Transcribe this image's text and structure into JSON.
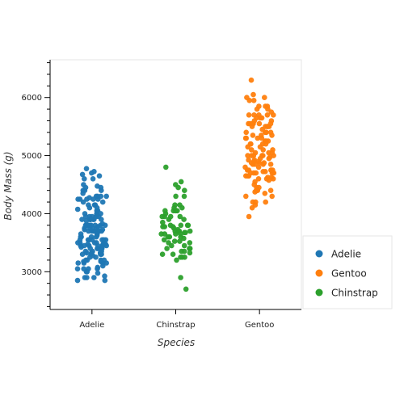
{
  "chart_data": {
    "type": "scatter",
    "title": "",
    "xlabel": "Species",
    "ylabel": "Body Mass (g)",
    "categories": [
      "Adelie",
      "Chinstrap",
      "Gentoo"
    ],
    "ylim": [
      2350,
      6650
    ],
    "yticks": [
      3000,
      4000,
      5000,
      6000
    ],
    "grid": false,
    "legend_position": "right",
    "series": [
      {
        "name": "Adelie",
        "category": "Adelie",
        "color": "#1f77b4",
        "values": [
          3750,
          3800,
          3250,
          3450,
          3650,
          3625,
          4675,
          3475,
          4250,
          3300,
          3700,
          3200,
          3800,
          4400,
          3700,
          3450,
          4500,
          3325,
          4200,
          3400,
          3600,
          3800,
          3950,
          3800,
          3800,
          3550,
          3200,
          3150,
          3950,
          3250,
          3900,
          3300,
          3900,
          3325,
          4150,
          3950,
          3550,
          3300,
          4650,
          3150,
          3900,
          3100,
          4400,
          3000,
          4600,
          3425,
          2975,
          3450,
          4150,
          3500,
          4300,
          3450,
          4050,
          2900,
          3700,
          3550,
          3800,
          2850,
          3750,
          3150,
          4400,
          3600,
          4050,
          2850,
          3950,
          3350,
          4100,
          3050,
          4450,
          3600,
          3900,
          3550,
          4150,
          3700,
          4250,
          3700,
          3900,
          3550,
          4000,
          3200,
          4700,
          3800,
          4200,
          3350,
          3550,
          3800,
          3500,
          3950,
          3600,
          3550,
          4300,
          3400,
          4450,
          3300,
          4300,
          3700,
          4350,
          2900,
          4100,
          3725,
          4725,
          3075,
          4250,
          2925,
          3550,
          3750,
          3900,
          3175,
          4775,
          3825,
          4600,
          3200,
          4275,
          3900,
          4075,
          2900,
          3775,
          3350,
          3325,
          3150,
          3500,
          3450,
          3875,
          3050,
          4000,
          3275,
          4300,
          3050,
          4000,
          3325,
          3500,
          3500,
          4475,
          3425,
          3900,
          3175,
          3975,
          3400,
          4250,
          3400,
          3475,
          3050,
          3725,
          3000,
          3650,
          4250,
          3475,
          3450,
          3750,
          3700,
          4000
        ]
      },
      {
        "name": "Gentoo",
        "category": "Gentoo",
        "color": "#ff7f0e",
        "values": [
          4500,
          5700,
          4450,
          5700,
          5400,
          4550,
          4800,
          5200,
          4400,
          5150,
          4650,
          5550,
          4650,
          5850,
          4200,
          5850,
          4150,
          6300,
          4800,
          5350,
          5700,
          5000,
          4400,
          5050,
          5000,
          5100,
          4100,
          5650,
          4600,
          5550,
          5250,
          4700,
          5050,
          6050,
          5150,
          5400,
          4950,
          5250,
          4350,
          5350,
          3950,
          5700,
          4300,
          4750,
          5550,
          4900,
          4200,
          5400,
          5100,
          5300,
          4850,
          5300,
          4400,
          5000,
          4900,
          5050,
          4300,
          5000,
          4450,
          5550,
          4200,
          5300,
          4400,
          5650,
          4700,
          5700,
          4650,
          5800,
          4700,
          5550,
          4750,
          5000,
          5100,
          5200,
          4700,
          5800,
          4600,
          6000,
          4750,
          5950,
          4625,
          5450,
          4725,
          5350,
          4750,
          5600,
          4600,
          5300,
          4875,
          5550,
          4950,
          5400,
          4750,
          5650,
          4850,
          5200,
          4925,
          4875,
          4625,
          5250,
          4850,
          5600,
          4975,
          5500,
          4725,
          5500,
          4700,
          5500,
          4575,
          5500,
          5000,
          5950,
          4650,
          5500,
          4375,
          5850,
          4875,
          6000,
          4925,
          4850,
          5750,
          5200,
          5400
        ]
      },
      {
        "name": "Chinstrap",
        "category": "Chinstrap",
        "color": "#2ca02c",
        "values": [
          3500,
          3900,
          3650,
          3525,
          3725,
          3950,
          3250,
          3750,
          4150,
          3700,
          3800,
          3775,
          3700,
          4050,
          3575,
          4050,
          3300,
          3700,
          3450,
          4400,
          3600,
          3400,
          2900,
          3800,
          3300,
          4150,
          3400,
          3800,
          3700,
          4550,
          3200,
          4300,
          3350,
          4100,
          3600,
          3900,
          3850,
          4800,
          2700,
          4500,
          3950,
          3650,
          3550,
          3500,
          3675,
          4450,
          3400,
          4300,
          3250,
          3675,
          3325,
          3950,
          3600,
          4050,
          3350,
          3450,
          3250,
          4050,
          3800,
          3525,
          3950,
          3650,
          3650,
          4000,
          3400,
          3775,
          4100,
          3775
        ]
      }
    ]
  }
}
